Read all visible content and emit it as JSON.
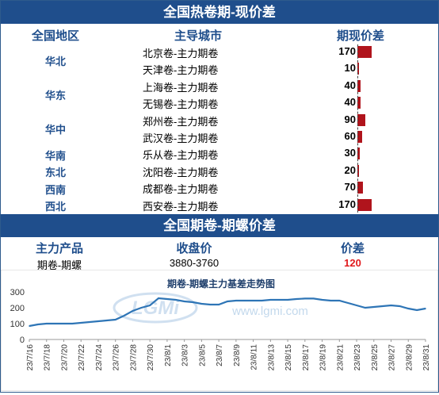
{
  "section1": {
    "title": "全国热卷期-现价差",
    "headers": {
      "region": "全国地区",
      "city": "主导城市",
      "spread": "期现价差"
    },
    "rows": [
      {
        "region": "华北",
        "city": "北京卷-主力期卷",
        "value": 170
      },
      {
        "region": "",
        "city": "天津卷-主力期卷",
        "value": 10
      },
      {
        "region": "华东",
        "city": "上海卷-主力期卷",
        "value": 40
      },
      {
        "region": "",
        "city": "无锡卷-主力期卷",
        "value": 40
      },
      {
        "region": "华中",
        "city": "郑州卷-主力期卷",
        "value": 90
      },
      {
        "region": "",
        "city": "武汉卷-主力期卷",
        "value": 60
      },
      {
        "region": "华南",
        "city": "乐从卷-主力期卷",
        "value": 30
      },
      {
        "region": "东北",
        "city": "沈阳卷-主力期卷",
        "value": 20
      },
      {
        "region": "西南",
        "city": "成都卷-主力期卷",
        "value": 70
      },
      {
        "region": "西北",
        "city": "西安卷-主力期卷",
        "value": 170
      }
    ],
    "region_labels": [
      "华北",
      "华东",
      "华中",
      "华南",
      "东北",
      "西南",
      "西北"
    ]
  },
  "section2": {
    "title": "全国期卷-期螺价差",
    "headers": {
      "product": "主力产品",
      "close": "收盘价",
      "spread": "价差"
    },
    "row": {
      "product": "期卷-期螺",
      "close": "3880-3760",
      "spread": "120"
    }
  },
  "colors": {
    "header_bg": "#1f4e8c",
    "bar": "#b0141c",
    "line": "#2e75b6",
    "accent_red": "#e0191c"
  },
  "watermark": {
    "logo": "LGMi",
    "url": "www.lgmi.com"
  },
  "chart_data": {
    "type": "line",
    "title": "期卷-期螺主力基差走势图",
    "ylim": [
      0,
      300
    ],
    "yticks": [
      0,
      100,
      200,
      300
    ],
    "grid": false,
    "tick_labels": [
      "23/7/16",
      "23/7/18",
      "23/7/20",
      "23/7/22",
      "23/7/24",
      "23/7/26",
      "23/7/28",
      "23/7/30",
      "23/8/1",
      "23/8/3",
      "23/8/5",
      "23/8/7",
      "23/8/9",
      "23/8/11",
      "23/8/13",
      "23/8/15",
      "23/8/17",
      "23/8/19",
      "23/8/21",
      "23/8/23",
      "23/8/25",
      "23/8/27",
      "23/8/29",
      "23/8/31"
    ],
    "x": [
      "23/7/16",
      "23/7/17",
      "23/7/18",
      "23/7/19",
      "23/7/20",
      "23/7/21",
      "23/7/22",
      "23/7/23",
      "23/7/24",
      "23/7/25",
      "23/7/26",
      "23/7/27",
      "23/7/28",
      "23/7/29",
      "23/7/30",
      "23/7/31",
      "23/8/1",
      "23/8/2",
      "23/8/3",
      "23/8/4",
      "23/8/5",
      "23/8/6",
      "23/8/7",
      "23/8/8",
      "23/8/9",
      "23/8/10",
      "23/8/11",
      "23/8/12",
      "23/8/13",
      "23/8/14",
      "23/8/15",
      "23/8/16",
      "23/8/17",
      "23/8/18",
      "23/8/19",
      "23/8/20",
      "23/8/21",
      "23/8/22",
      "23/8/23",
      "23/8/24",
      "23/8/25",
      "23/8/26",
      "23/8/27",
      "23/8/28",
      "23/8/29",
      "23/8/30",
      "23/8/31"
    ],
    "values": [
      85,
      95,
      100,
      100,
      100,
      100,
      105,
      110,
      115,
      120,
      125,
      150,
      180,
      200,
      215,
      260,
      255,
      250,
      240,
      235,
      225,
      220,
      220,
      240,
      245,
      245,
      245,
      245,
      250,
      250,
      250,
      255,
      258,
      258,
      250,
      245,
      245,
      230,
      215,
      200,
      205,
      210,
      215,
      210,
      195,
      185,
      195
    ]
  }
}
